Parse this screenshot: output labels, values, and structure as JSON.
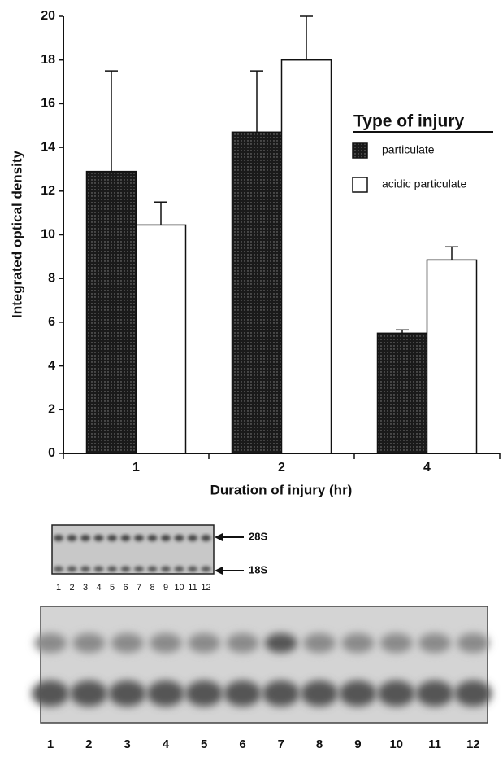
{
  "chart_data": {
    "type": "bar",
    "xlabel": "Duration of injury (hr)",
    "ylabel": "Integrated optical density",
    "categories": [
      "1",
      "2",
      "4"
    ],
    "series": [
      {
        "name": "particulate",
        "color": "#222222",
        "values": [
          12.9,
          14.7,
          5.5
        ],
        "errors": [
          4.6,
          2.8,
          0.15
        ]
      },
      {
        "name": "acidic particulate",
        "color": "#ffffff",
        "values": [
          10.45,
          18.0,
          8.85
        ],
        "errors": [
          1.05,
          2.0,
          0.6
        ]
      }
    ],
    "ylim": [
      0,
      20
    ],
    "yticks": [
      0,
      2,
      4,
      6,
      8,
      10,
      12,
      14,
      16,
      18,
      20
    ],
    "legend_title": "Type of injury",
    "legend": "right"
  },
  "blot_small": {
    "markers": [
      "28S",
      "18S"
    ],
    "lanes": [
      "1",
      "2",
      "3",
      "4",
      "5",
      "6",
      "7",
      "8",
      "9",
      "10",
      "11",
      "12"
    ]
  },
  "blot_large": {
    "lanes": [
      "1",
      "2",
      "3",
      "4",
      "5",
      "6",
      "7",
      "8",
      "9",
      "10",
      "11",
      "12"
    ]
  }
}
